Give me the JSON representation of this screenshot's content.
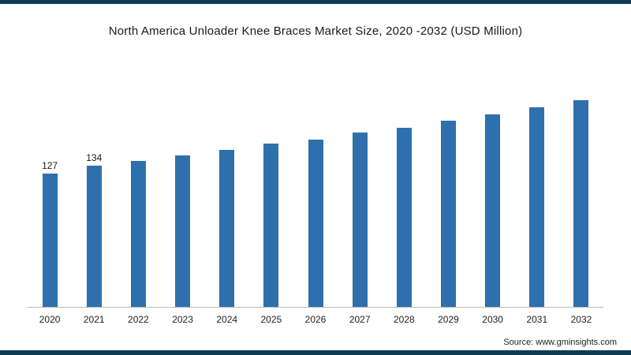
{
  "chart_data": {
    "type": "bar",
    "title": "North America Unloader Knee Braces Market Size, 2020 -2032 (USD Million)",
    "categories": [
      "2020",
      "2021",
      "2022",
      "2023",
      "2024",
      "2025",
      "2026",
      "2027",
      "2028",
      "2029",
      "2030",
      "2031",
      "2032"
    ],
    "values": [
      127,
      134,
      139,
      144,
      149,
      155,
      159,
      166,
      170,
      177,
      183,
      190,
      198
    ],
    "data_labels": {
      "2020": "127",
      "2021": "134"
    },
    "xlabel": "",
    "ylabel": "",
    "ylim": [
      0,
      210
    ],
    "grid": false,
    "legend": "none",
    "bar_color": "#2d70ad",
    "axis_line_color": "#b9b9b9"
  },
  "page": {
    "accent_strip_color": "#0d3b54",
    "source_text": "Source: www.gminsights.com"
  }
}
